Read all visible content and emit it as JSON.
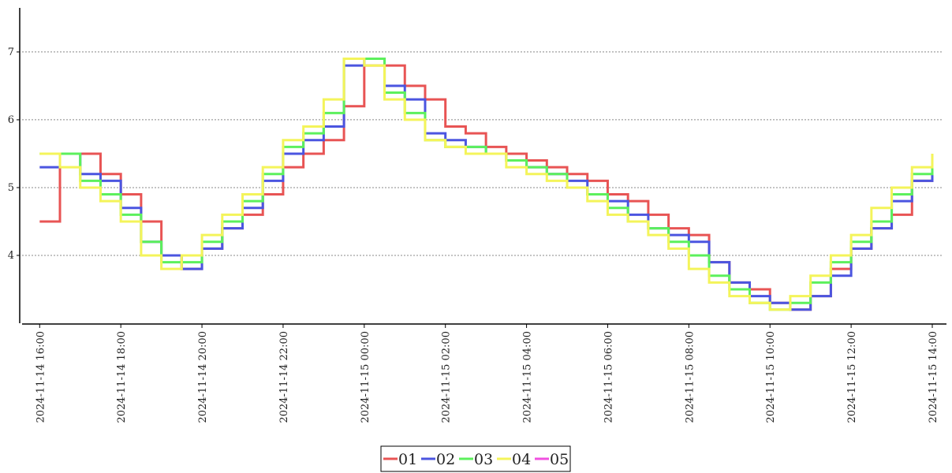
{
  "chart_data": {
    "type": "line",
    "step": true,
    "x": [
      "2024-11-14 16:00",
      "2024-11-14 16:30",
      "2024-11-14 17:00",
      "2024-11-14 17:30",
      "2024-11-14 18:00",
      "2024-11-14 18:30",
      "2024-11-14 19:00",
      "2024-11-14 19:30",
      "2024-11-14 20:00",
      "2024-11-14 20:30",
      "2024-11-14 21:00",
      "2024-11-14 21:30",
      "2024-11-14 22:00",
      "2024-11-14 22:30",
      "2024-11-14 23:00",
      "2024-11-14 23:30",
      "2024-11-15 00:00",
      "2024-11-15 00:30",
      "2024-11-15 01:00",
      "2024-11-15 01:30",
      "2024-11-15 02:00",
      "2024-11-15 02:30",
      "2024-11-15 03:00",
      "2024-11-15 03:30",
      "2024-11-15 04:00",
      "2024-11-15 04:30",
      "2024-11-15 05:00",
      "2024-11-15 05:30",
      "2024-11-15 06:00",
      "2024-11-15 06:30",
      "2024-11-15 07:00",
      "2024-11-15 07:30",
      "2024-11-15 08:00",
      "2024-11-15 08:30",
      "2024-11-15 09:00",
      "2024-11-15 09:30",
      "2024-11-15 10:00",
      "2024-11-15 10:30",
      "2024-11-15 11:00",
      "2024-11-15 11:30",
      "2024-11-15 12:00",
      "2024-11-15 12:30",
      "2024-11-15 13:00",
      "2024-11-15 13:30",
      "2024-11-15 14:00"
    ],
    "series": [
      {
        "name": "01",
        "color": "#e85454",
        "values": [
          4.5,
          5.5,
          5.5,
          5.2,
          4.9,
          4.5,
          4.0,
          3.8,
          4.1,
          4.4,
          4.6,
          4.9,
          5.3,
          5.5,
          5.7,
          6.2,
          6.8,
          6.8,
          6.5,
          6.3,
          5.9,
          5.8,
          5.6,
          5.5,
          5.4,
          5.3,
          5.2,
          5.1,
          4.9,
          4.8,
          4.6,
          4.4,
          4.3,
          3.9,
          3.6,
          3.5,
          3.3,
          3.2,
          3.4,
          3.8,
          4.1,
          4.4,
          4.6,
          5.1,
          5.3
        ]
      },
      {
        "name": "02",
        "color": "#4b55e0",
        "values": [
          5.3,
          5.5,
          5.2,
          5.1,
          4.7,
          4.2,
          4.0,
          3.8,
          4.1,
          4.4,
          4.7,
          5.1,
          5.5,
          5.7,
          5.9,
          6.8,
          6.9,
          6.5,
          6.3,
          5.8,
          5.7,
          5.6,
          5.5,
          5.4,
          5.3,
          5.2,
          5.1,
          4.9,
          4.8,
          4.6,
          4.4,
          4.3,
          4.2,
          3.9,
          3.6,
          3.4,
          3.3,
          3.2,
          3.4,
          3.7,
          4.1,
          4.4,
          4.8,
          5.1,
          5.5
        ]
      },
      {
        "name": "03",
        "color": "#5cf05c",
        "values": [
          5.5,
          5.5,
          5.1,
          4.9,
          4.6,
          4.2,
          3.9,
          3.9,
          4.2,
          4.5,
          4.8,
          5.2,
          5.6,
          5.8,
          6.1,
          6.9,
          6.9,
          6.4,
          6.1,
          5.7,
          5.6,
          5.6,
          5.5,
          5.4,
          5.3,
          5.2,
          5.0,
          4.9,
          4.7,
          4.5,
          4.4,
          4.2,
          4.0,
          3.7,
          3.5,
          3.3,
          3.2,
          3.3,
          3.6,
          3.9,
          4.2,
          4.5,
          4.9,
          5.2,
          5.5
        ]
      },
      {
        "name": "04",
        "color": "#f4f45a",
        "values": [
          5.5,
          5.3,
          5.0,
          4.8,
          4.5,
          4.0,
          3.8,
          4.0,
          4.3,
          4.6,
          4.9,
          5.3,
          5.7,
          5.9,
          6.3,
          6.9,
          6.8,
          6.3,
          6.0,
          5.7,
          5.6,
          5.5,
          5.5,
          5.3,
          5.2,
          5.1,
          5.0,
          4.8,
          4.6,
          4.5,
          4.3,
          4.1,
          3.8,
          3.6,
          3.4,
          3.3,
          3.2,
          3.4,
          3.7,
          4.0,
          4.3,
          4.7,
          5.0,
          5.3,
          5.5
        ]
      },
      {
        "name": "05",
        "color": "#f050e0",
        "values": [
          null,
          null,
          null,
          null,
          null,
          null,
          null,
          null,
          null,
          null,
          null,
          null,
          null,
          null,
          null,
          null,
          null,
          null,
          null,
          null,
          null,
          null,
          null,
          null,
          null,
          null,
          null,
          null,
          null,
          null,
          null,
          null,
          null,
          null,
          null,
          null,
          null,
          null,
          null,
          null,
          null,
          null,
          null,
          null,
          null
        ]
      }
    ],
    "xlim": [
      "2024-11-14 15:34",
      "2024-11-15 14:21"
    ],
    "xticks": [
      "2024-11-14 16:00",
      "2024-11-14 18:00",
      "2024-11-14 20:00",
      "2024-11-14 22:00",
      "2024-11-15 00:00",
      "2024-11-15 02:00",
      "2024-11-15 04:00",
      "2024-11-15 06:00",
      "2024-11-15 08:00",
      "2024-11-15 10:00",
      "2024-11-15 12:00",
      "2024-11-15 14:00"
    ],
    "ylim": [
      3,
      7.65
    ],
    "yticks": [
      4,
      5,
      6,
      7
    ],
    "grid": true
  }
}
